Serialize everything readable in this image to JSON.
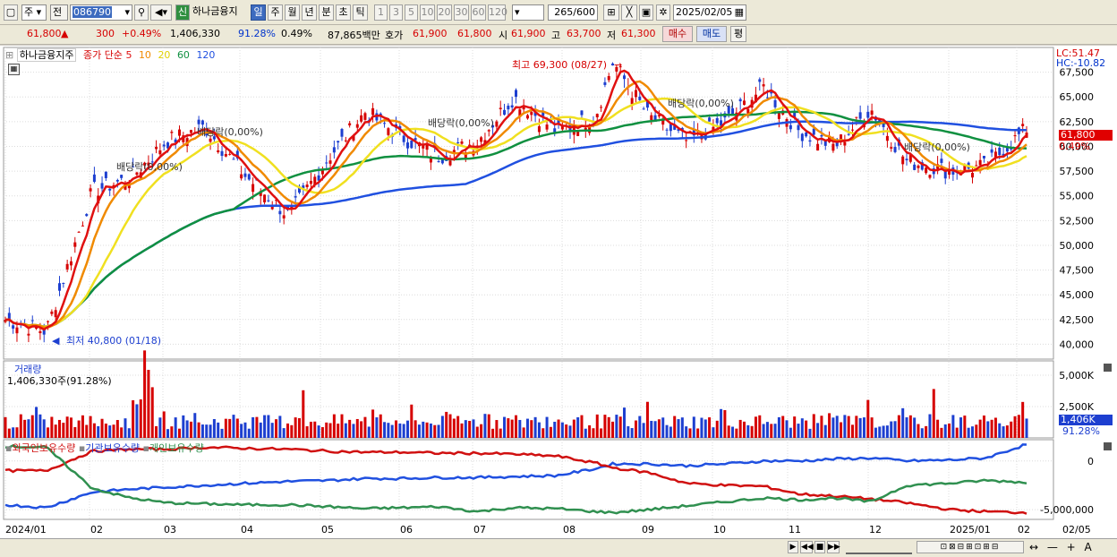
{
  "toolbar": {
    "market": "주",
    "scope": "전",
    "code": "086790",
    "badge": "신",
    "name": "하나금융지",
    "periods": [
      "일",
      "주",
      "월",
      "년",
      "분",
      "초",
      "틱"
    ],
    "active_period": "일",
    "nums": [
      "1",
      "3",
      "5",
      "10",
      "20",
      "30",
      "60",
      "120"
    ],
    "count": "265",
    "total": "/600",
    "date": "2025/02/05"
  },
  "info": {
    "price": "61,800",
    "arrow": "▲",
    "change": "300",
    "pct": "+0.49%",
    "volume": "1,406,330",
    "vol_ratio": "91.28%",
    "turnover_pct": "0.49%",
    "amount": "87,865백만",
    "ask_label": "호가",
    "ask": "61,900",
    "bid": "61,800",
    "open_label": "시",
    "open": "61,900",
    "high_label": "고",
    "high": "63,700",
    "low_label": "저",
    "low": "61,300",
    "buy": "매수",
    "sell": "매도",
    "eval": "평"
  },
  "colors": {
    "up": "#d60000",
    "down": "#1d3fd0",
    "ma5": "#e01010",
    "ma10": "#f08a00",
    "ma20": "#f0e020",
    "ma60": "#109040",
    "ma120": "#2050e0",
    "foreign": "#2050e0",
    "institution": "#d01010",
    "individual": "#309050"
  },
  "chart_data": [
    {
      "type": "candlestick",
      "title": "하나금융지주",
      "legend": {
        "price_label": "종가 단순",
        "ma": [
          "5",
          "10",
          "20",
          "60",
          "120"
        ]
      },
      "lc": "LC:51.47",
      "hc": "HC:-10.82",
      "ylim": [
        38500,
        70000
      ],
      "yticks": [
        "67,500",
        "65,000",
        "62,500",
        "60,000",
        "57,500",
        "55,000",
        "52,500",
        "50,000",
        "47,500",
        "45,000",
        "42,500",
        "40,000"
      ],
      "months": [
        "2024/01",
        "02",
        "03",
        "04",
        "05",
        "06",
        "07",
        "08",
        "09",
        "10",
        "11",
        "12",
        "2025/01",
        "02",
        "02/05"
      ],
      "last_price": "61,800",
      "last_pct": "0.49%",
      "annotations": {
        "high": "최고 69,300 (08/27)",
        "low": "최저 40,800 (01/18)",
        "dividend": "배당락(0,00%)"
      },
      "series_anchors": {
        "dates": [
          "2024-01-02",
          "2024-01-18",
          "2024-02-05",
          "2024-02-20",
          "2024-03-05",
          "2024-03-20",
          "2024-04-05",
          "2024-04-22",
          "2024-05-08",
          "2024-05-22",
          "2024-06-05",
          "2024-06-20",
          "2024-07-05",
          "2024-07-19",
          "2024-08-05",
          "2024-08-20",
          "2024-08-27",
          "2024-09-10",
          "2024-09-25",
          "2024-10-10",
          "2024-10-25",
          "2024-11-08",
          "2024-11-22",
          "2024-12-06",
          "2024-12-20",
          "2025-01-06",
          "2025-01-20",
          "2025-02-05"
        ],
        "close": [
          42500,
          41300,
          55500,
          56800,
          60500,
          62000,
          57000,
          53000,
          59000,
          63500,
          61000,
          59000,
          60500,
          65000,
          61500,
          63000,
          68500,
          63000,
          60500,
          62500,
          66000,
          61500,
          60000,
          63800,
          58500,
          57500,
          58000,
          61800
        ]
      }
    },
    {
      "type": "bar",
      "title": "거래량",
      "value_label": "1,406,330주(91.28%)",
      "yticks": [
        "5,000K",
        "2,500K"
      ],
      "last_value": "1,406K",
      "last_pct": "91.28%",
      "ylim": [
        0,
        6000
      ]
    },
    {
      "type": "line",
      "series_names": [
        "외국인보유수량",
        "기관보유수량",
        "개인보유수량"
      ],
      "yticks": [
        "0",
        "-5,000,000"
      ],
      "ylim": [
        -6000000,
        2000000
      ],
      "anchors": {
        "foreign": [
          -4500000,
          -4800000,
          -3200000,
          -2900000,
          -2700000,
          -2500000,
          -2300000,
          -2100000,
          -2000000,
          -1800000,
          -1800000,
          -1700000,
          -1700000,
          -1600000,
          -1500000,
          -800000,
          -300000,
          -300000,
          -500000,
          -300000,
          0,
          0,
          200000,
          300000,
          0,
          100000,
          300000,
          1700000
        ],
        "institution": [
          -1000000,
          -1000000,
          1000000,
          1200000,
          1200000,
          1400000,
          1300000,
          1200000,
          1000000,
          900000,
          900000,
          800000,
          800000,
          700000,
          500000,
          -200000,
          -700000,
          -1200000,
          -2300000,
          -2500000,
          -2600000,
          -3400000,
          -3600000,
          -3900000,
          -4300000,
          -5000000,
          -5200000,
          -5300000
        ],
        "individual": [
          1500000,
          1400000,
          -2800000,
          -3800000,
          -4300000,
          -4400000,
          -4500000,
          -4500000,
          -4700000,
          -4900000,
          -4800000,
          -4700000,
          -5200000,
          -4800000,
          -4900000,
          -5200000,
          -5300000,
          -5000000,
          -4600000,
          -4200000,
          -3800000,
          -4000000,
          -3800000,
          -4200000,
          -2500000,
          -2300000,
          -2000000,
          -2200000
        ]
      }
    }
  ]
}
